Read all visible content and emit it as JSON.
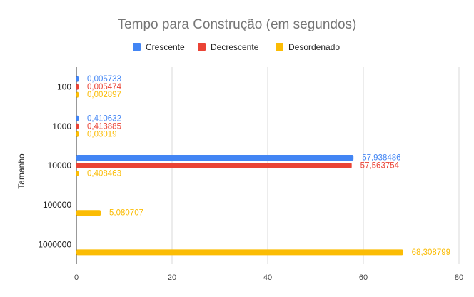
{
  "chart_data": {
    "type": "bar",
    "orientation": "horizontal",
    "title": "Tempo para Construção (em segundos)",
    "xlabel": "",
    "ylabel": "Tamanho",
    "categories": [
      "100",
      "1000",
      "10000",
      "100000",
      "1000000"
    ],
    "series": [
      {
        "name": "Crescente",
        "color": "#4285f4",
        "values": [
          0.005733,
          0.410632,
          57.938486,
          null,
          null
        ],
        "labels": [
          "0,005733",
          "0,410632",
          "57,938486",
          "",
          ""
        ]
      },
      {
        "name": "Decrescente",
        "color": "#ea4335",
        "values": [
          0.005474,
          0.413885,
          57.563754,
          null,
          null
        ],
        "labels": [
          "0,005474",
          "0,413885",
          "57,563754",
          "",
          ""
        ]
      },
      {
        "name": "Desordenado",
        "color": "#fbbc04",
        "values": [
          0.002897,
          0.03019,
          0.408463,
          5.080707,
          68.308799
        ],
        "labels": [
          "0,002897",
          "0,03019",
          "0,408463",
          "5,080707",
          "68,308799"
        ]
      }
    ],
    "xlim": [
      0,
      80
    ],
    "xticks": [
      "0",
      "20",
      "40",
      "60",
      "80"
    ],
    "grid": true,
    "legend_position": "top"
  }
}
